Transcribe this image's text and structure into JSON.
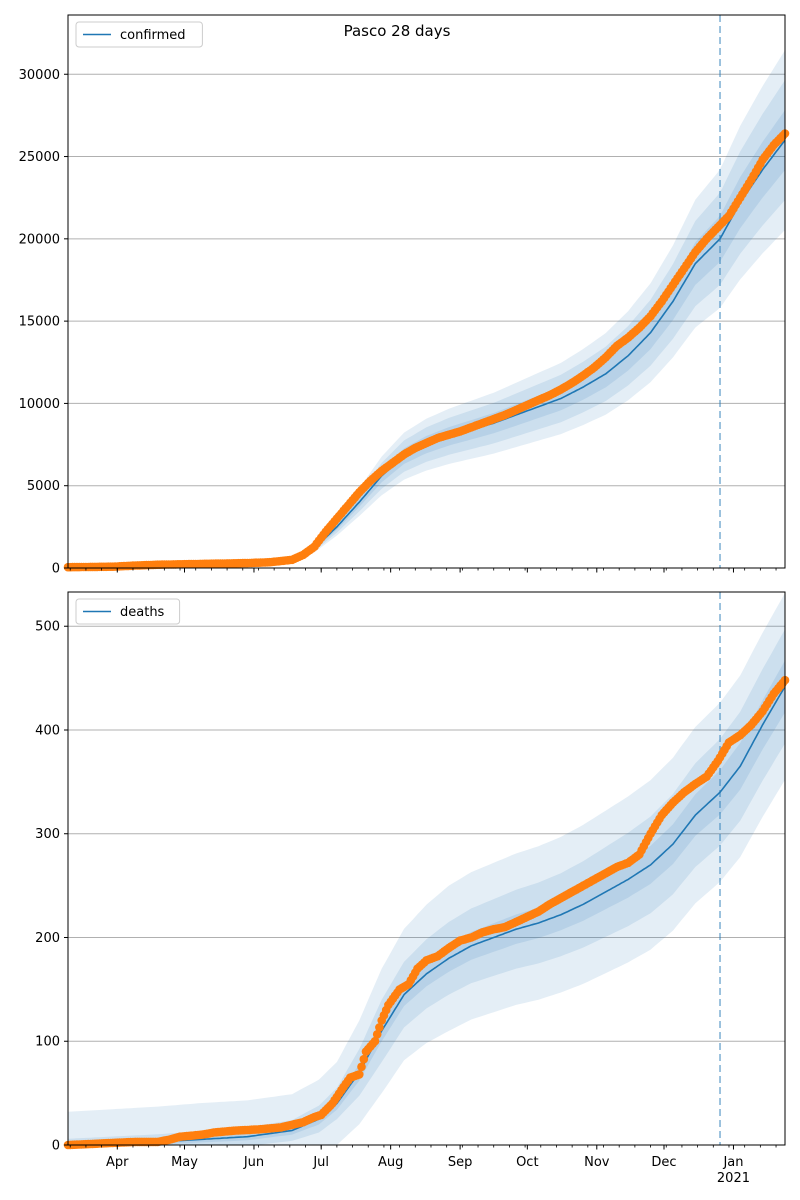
{
  "title": "Pasco 28 days",
  "colors": {
    "model_line": "#1f77b4",
    "observed": "#ff7f0e",
    "band": "#1f77b4",
    "grid": "#b0b0b0",
    "vline": "#1f77b4"
  },
  "x_axis": {
    "domain_days": [
      0,
      320
    ],
    "month_ticks": [
      {
        "label": "Apr",
        "day": 22
      },
      {
        "label": "May",
        "day": 52
      },
      {
        "label": "Jun",
        "day": 83
      },
      {
        "label": "Jul",
        "day": 113
      },
      {
        "label": "Aug",
        "day": 144
      },
      {
        "label": "Sep",
        "day": 175
      },
      {
        "label": "Oct",
        "day": 205
      },
      {
        "label": "Nov",
        "day": 236
      },
      {
        "label": "Dec",
        "day": 266
      },
      {
        "label": "Jan",
        "day": 297
      }
    ],
    "year_label": "2021",
    "forecast_start_day": 291
  },
  "chart_data": [
    {
      "type": "line",
      "name": "confirmed",
      "legend": "confirmed",
      "legend_location": "upper left",
      "ylim": [
        0,
        33600
      ],
      "yticks": [
        0,
        5000,
        10000,
        15000,
        20000,
        25000,
        30000
      ],
      "grid": true,
      "model_knots": [
        [
          0,
          50
        ],
        [
          40,
          150
        ],
        [
          80,
          300
        ],
        [
          100,
          500
        ],
        [
          110,
          1200
        ],
        [
          120,
          2500
        ],
        [
          130,
          4000
        ],
        [
          140,
          5600
        ],
        [
          150,
          6800
        ],
        [
          160,
          7500
        ],
        [
          170,
          8000
        ],
        [
          180,
          8400
        ],
        [
          190,
          8800
        ],
        [
          200,
          9300
        ],
        [
          210,
          9800
        ],
        [
          220,
          10300
        ],
        [
          230,
          11000
        ],
        [
          240,
          11800
        ],
        [
          250,
          12900
        ],
        [
          260,
          14300
        ],
        [
          270,
          16200
        ],
        [
          280,
          18500
        ],
        [
          291,
          20000
        ],
        [
          300,
          22200
        ],
        [
          310,
          24200
        ],
        [
          320,
          26000
        ]
      ],
      "band_rel_widths": [
        0.07,
        0.14,
        0.21
      ],
      "observed_knots": [
        [
          0,
          50
        ],
        [
          20,
          80
        ],
        [
          30,
          150
        ],
        [
          40,
          200
        ],
        [
          60,
          250
        ],
        [
          80,
          300
        ],
        [
          90,
          350
        ],
        [
          100,
          500
        ],
        [
          105,
          800
        ],
        [
          110,
          1300
        ],
        [
          115,
          2200
        ],
        [
          120,
          3000
        ],
        [
          125,
          3800
        ],
        [
          130,
          4600
        ],
        [
          135,
          5300
        ],
        [
          140,
          5900
        ],
        [
          145,
          6400
        ],
        [
          150,
          6900
        ],
        [
          155,
          7300
        ],
        [
          160,
          7600
        ],
        [
          165,
          7900
        ],
        [
          170,
          8100
        ],
        [
          175,
          8300
        ],
        [
          180,
          8550
        ],
        [
          185,
          8800
        ],
        [
          190,
          9050
        ],
        [
          195,
          9300
        ],
        [
          200,
          9600
        ],
        [
          205,
          9900
        ],
        [
          210,
          10200
        ],
        [
          215,
          10500
        ],
        [
          220,
          10850
        ],
        [
          225,
          11250
        ],
        [
          230,
          11700
        ],
        [
          235,
          12200
        ],
        [
          240,
          12800
        ],
        [
          245,
          13500
        ],
        [
          250,
          14000
        ],
        [
          255,
          14600
        ],
        [
          260,
          15300
        ],
        [
          265,
          16200
        ],
        [
          270,
          17200
        ],
        [
          275,
          18200
        ],
        [
          280,
          19200
        ],
        [
          285,
          20000
        ],
        [
          290,
          20700
        ],
        [
          295,
          21400
        ],
        [
          300,
          22500
        ],
        [
          305,
          23600
        ],
        [
          310,
          24800
        ],
        [
          315,
          25700
        ],
        [
          320,
          26400
        ]
      ]
    },
    {
      "type": "line",
      "name": "deaths",
      "legend": "deaths",
      "legend_location": "upper left",
      "ylim": [
        0,
        533
      ],
      "yticks": [
        0,
        100,
        200,
        300,
        400,
        500
      ],
      "grid": true,
      "model_knots": [
        [
          0,
          0
        ],
        [
          40,
          3
        ],
        [
          80,
          8
        ],
        [
          100,
          14
        ],
        [
          112,
          25
        ],
        [
          120,
          40
        ],
        [
          130,
          70
        ],
        [
          140,
          110
        ],
        [
          150,
          145
        ],
        [
          160,
          165
        ],
        [
          170,
          180
        ],
        [
          180,
          192
        ],
        [
          190,
          200
        ],
        [
          200,
          208
        ],
        [
          210,
          214
        ],
        [
          220,
          222
        ],
        [
          230,
          232
        ],
        [
          240,
          244
        ],
        [
          250,
          256
        ],
        [
          260,
          270
        ],
        [
          270,
          290
        ],
        [
          280,
          318
        ],
        [
          291,
          340
        ],
        [
          300,
          365
        ],
        [
          310,
          405
        ],
        [
          320,
          442
        ]
      ],
      "band_abs_widths": [
        [
          [
            0,
            2
          ],
          [
            60,
            3
          ],
          [
            100,
            4
          ],
          [
            120,
            6
          ],
          [
            140,
            10
          ],
          [
            170,
            13
          ],
          [
            220,
            15
          ],
          [
            280,
            20
          ],
          [
            320,
            25
          ]
        ],
        [
          [
            0,
            6
          ],
          [
            60,
            8
          ],
          [
            100,
            10
          ],
          [
            120,
            15
          ],
          [
            140,
            30
          ],
          [
            170,
            35
          ],
          [
            220,
            40
          ],
          [
            280,
            50
          ],
          [
            320,
            55
          ]
        ],
        [
          [
            0,
            32
          ],
          [
            60,
            35
          ],
          [
            100,
            35
          ],
          [
            120,
            40
          ],
          [
            140,
            60
          ],
          [
            170,
            70
          ],
          [
            220,
            75
          ],
          [
            280,
            85
          ],
          [
            320,
            90
          ]
        ]
      ],
      "observed_knots": [
        [
          0,
          0
        ],
        [
          20,
          2
        ],
        [
          30,
          3
        ],
        [
          40,
          3
        ],
        [
          45,
          5
        ],
        [
          50,
          8
        ],
        [
          60,
          10
        ],
        [
          65,
          12
        ],
        [
          75,
          14
        ],
        [
          85,
          15
        ],
        [
          95,
          17
        ],
        [
          105,
          22
        ],
        [
          110,
          27
        ],
        [
          113,
          29
        ],
        [
          118,
          40
        ],
        [
          123,
          56
        ],
        [
          126,
          65
        ],
        [
          130,
          68
        ],
        [
          133,
          90
        ],
        [
          137,
          100
        ],
        [
          140,
          120
        ],
        [
          143,
          135
        ],
        [
          148,
          150
        ],
        [
          152,
          155
        ],
        [
          156,
          170
        ],
        [
          160,
          178
        ],
        [
          165,
          182
        ],
        [
          170,
          190
        ],
        [
          175,
          197
        ],
        [
          180,
          200
        ],
        [
          185,
          205
        ],
        [
          190,
          208
        ],
        [
          195,
          210
        ],
        [
          200,
          215
        ],
        [
          205,
          220
        ],
        [
          210,
          225
        ],
        [
          215,
          232
        ],
        [
          220,
          238
        ],
        [
          225,
          244
        ],
        [
          230,
          250
        ],
        [
          235,
          256
        ],
        [
          240,
          262
        ],
        [
          245,
          268
        ],
        [
          250,
          272
        ],
        [
          255,
          280
        ],
        [
          260,
          300
        ],
        [
          265,
          318
        ],
        [
          270,
          330
        ],
        [
          275,
          340
        ],
        [
          280,
          348
        ],
        [
          285,
          355
        ],
        [
          290,
          370
        ],
        [
          295,
          388
        ],
        [
          300,
          395
        ],
        [
          305,
          405
        ],
        [
          310,
          418
        ],
        [
          315,
          435
        ],
        [
          320,
          448
        ]
      ]
    }
  ]
}
